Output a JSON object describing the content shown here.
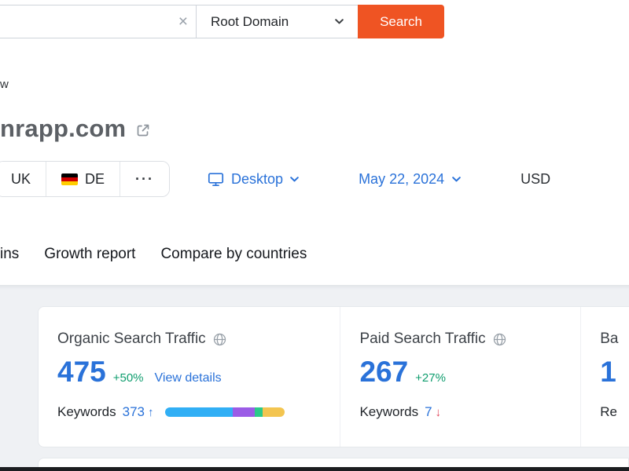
{
  "search": {
    "input_value": "",
    "scope_label": "Root Domain",
    "button_label": "Search"
  },
  "header": {
    "section_fragment": "w",
    "domain": "nrapp.com"
  },
  "filters": {
    "region_tabs": [
      "UK",
      "DE"
    ],
    "more_label": "···",
    "device_label": "Desktop",
    "date_label": "May 22, 2024",
    "currency_label": "USD"
  },
  "nav_tabs": [
    "ins",
    "Growth report",
    "Compare by countries"
  ],
  "metrics": {
    "organic": {
      "title": "Organic Search Traffic",
      "value": "475",
      "change": "+50%",
      "details_link": "View details",
      "keywords_label": "Keywords",
      "keywords_value": "373",
      "trend": "up"
    },
    "paid": {
      "title": "Paid Search Traffic",
      "value": "267",
      "change": "+27%",
      "keywords_label": "Keywords",
      "keywords_value": "7",
      "trend": "down"
    },
    "backlinks_partial": {
      "title": "Ba",
      "value": "1",
      "footer": "Re"
    }
  },
  "keyword_bar": {
    "segments": [
      {
        "color": "#31aff5",
        "percent": 57
      },
      {
        "color": "#9b5ce6",
        "percent": 18
      },
      {
        "color": "#2bc98a",
        "percent": 7
      },
      {
        "color": "#f3c550",
        "percent": 18
      }
    ]
  },
  "glyphs": {
    "clear": "×",
    "up": "↑",
    "down": "↓"
  },
  "colors": {
    "accent_orange": "#ef5423",
    "link_blue": "#2a72d9",
    "positive_green": "#0f9d6e",
    "negative_red": "#e14358"
  }
}
